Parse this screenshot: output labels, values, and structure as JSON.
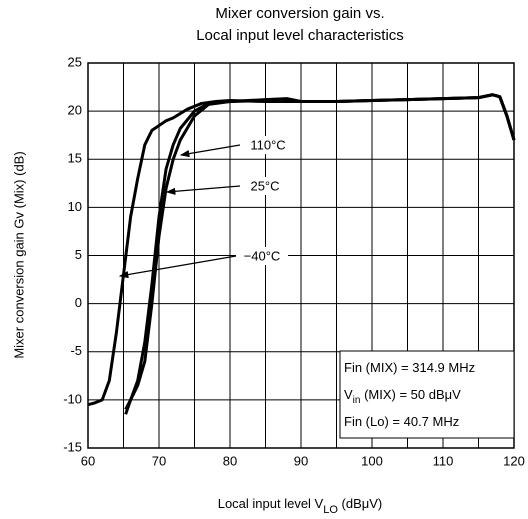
{
  "chart_data": {
    "type": "line",
    "title": [
      "Mixer conversion gain vs.",
      "Local input level characteristics"
    ],
    "x_label": [
      "Local input level  V",
      "LO",
      "   (dBμV)"
    ],
    "y_label": "Mixer conversion gain    Gv (Mix)    (dB)",
    "xlim": [
      60,
      120
    ],
    "ylim": [
      -15,
      25
    ],
    "xticks": [
      60,
      70,
      80,
      90,
      100,
      110,
      120
    ],
    "x_minor_grid": [
      65,
      75,
      85,
      95,
      105,
      115
    ],
    "yticks": [
      -15,
      -10,
      -5,
      0,
      5,
      10,
      15,
      20,
      25
    ],
    "grid": true,
    "series": [
      {
        "name": "110°C",
        "color": "#000000",
        "x": [
          65.3,
          66,
          67,
          68,
          69,
          70,
          71,
          72,
          73,
          75,
          77,
          80,
          85,
          88,
          90,
          95,
          100,
          105,
          110,
          115,
          117,
          118,
          119,
          120
        ],
        "values": [
          -11,
          -10,
          -8,
          -4,
          2,
          9,
          14,
          16.5,
          18.2,
          20,
          20.8,
          21,
          21.2,
          21.3,
          21,
          21,
          21.1,
          21.2,
          21.3,
          21.4,
          21.7,
          21.5,
          19.5,
          17
        ]
      },
      {
        "name": "25°C",
        "color": "#000000",
        "x": [
          65.3,
          66,
          67,
          68,
          69,
          70,
          71,
          72,
          73,
          75,
          77,
          80,
          85,
          88,
          90,
          95,
          100,
          105,
          110,
          115,
          117,
          118,
          119,
          120
        ],
        "values": [
          -11.5,
          -10,
          -8.5,
          -6,
          0,
          7,
          12,
          15,
          17,
          19.5,
          20.7,
          21,
          21.1,
          21.2,
          21,
          21,
          21.1,
          21.2,
          21.3,
          21.4,
          21.7,
          21.5,
          19.5,
          17
        ]
      },
      {
        "name": "−40°C",
        "color": "#000000",
        "x": [
          60,
          61,
          62,
          63,
          64,
          65,
          66,
          67,
          68,
          69,
          70,
          71,
          72,
          74,
          76,
          78,
          80,
          85,
          90,
          95,
          100,
          105,
          110,
          115,
          117,
          118,
          119,
          120
        ],
        "values": [
          -10.5,
          -10.3,
          -10,
          -8,
          -3,
          3,
          9,
          13,
          16.5,
          18,
          18.5,
          19,
          19.3,
          20.2,
          20.8,
          21,
          21.1,
          21,
          21,
          21,
          21.1,
          21.2,
          21.3,
          21.4,
          21.7,
          21.5,
          19.5,
          17
        ]
      }
    ],
    "inset": [
      [
        "Fin (MIX) = 314.9 MHz"
      ],
      [
        "V",
        "in",
        " (MIX) = 50 dBμV"
      ],
      [
        "Fin (Lo) = 40.7 MHz"
      ]
    ]
  }
}
